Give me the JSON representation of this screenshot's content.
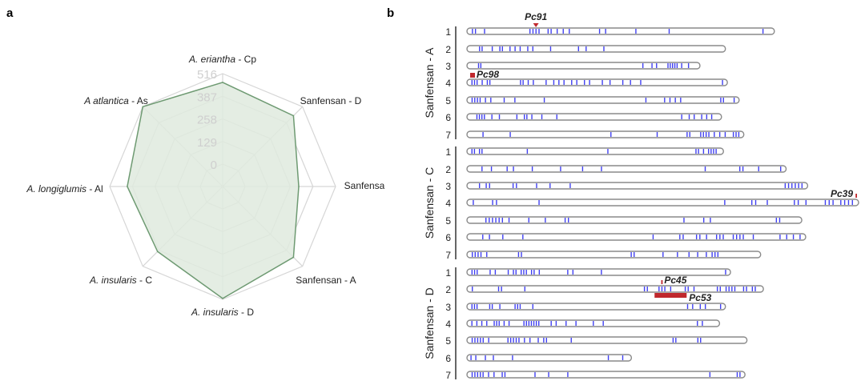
{
  "panels": {
    "a": "a",
    "b": "b"
  },
  "chart_data": [
    {
      "type": "radar",
      "axes": [
        "A. eriantha - Cp",
        "Sanfensan - D",
        "Sanfensan - C",
        "Sanfensan - A",
        "A. insularis - D",
        "A. insularis - C",
        "A. longiglumis - Al",
        "A atlantica - As"
      ],
      "axis_label_parts": [
        {
          "italic": "A. eriantha",
          "plain": " - Cp"
        },
        {
          "italic": "",
          "plain": "Sanfensan - D"
        },
        {
          "italic": "",
          "plain": "Sanfensan - C"
        },
        {
          "italic": "",
          "plain": "Sanfensan - A"
        },
        {
          "italic": "A. insularis",
          "plain": " - D"
        },
        {
          "italic": "A. insularis",
          "plain": " - C"
        },
        {
          "italic": "A. longiglumis",
          "plain": " - Al"
        },
        {
          "italic": "A atlantica",
          "plain": " - As"
        }
      ],
      "values": [
        466,
        443,
        306,
        443,
        511,
        397,
        416,
        516
      ],
      "ticks": [
        0,
        129,
        258,
        387,
        516
      ],
      "tick_labels": [
        "0",
        "129",
        "258",
        "387",
        "516"
      ],
      "range": [
        0,
        516
      ],
      "colors": {
        "fill": "#dfeade",
        "line": "#6e9a72",
        "grid": "#d6d6d6",
        "tick": "#cfcfcf"
      }
    },
    {
      "type": "chromosome-map",
      "colors": {
        "band": "#0000ee",
        "outline": "#8a8a8a",
        "marker": "#c0282d"
      },
      "genomes": [
        {
          "name": "Sanfensan - A",
          "chromosomes": [
            {
              "label": "1",
              "relative_length": 0.785,
              "bands": [
                0.01,
                0.02,
                0.05,
                0.2,
                0.21,
                0.22,
                0.23,
                0.26,
                0.27,
                0.29,
                0.31,
                0.33,
                0.43,
                0.45,
                0.55,
                0.66,
                0.97
              ]
            },
            {
              "label": "2",
              "relative_length": 0.66,
              "bands": [
                0.04,
                0.05,
                0.09,
                0.12,
                0.13,
                0.16,
                0.18,
                0.2,
                0.23,
                0.25,
                0.32,
                0.43,
                0.46,
                0.53
              ]
            },
            {
              "label": "3",
              "relative_length": 0.595,
              "bands": [
                0.04,
                0.05,
                0.76,
                0.8,
                0.82,
                0.87,
                0.88,
                0.89,
                0.9,
                0.91,
                0.93,
                0.96
              ]
            },
            {
              "label": "4",
              "relative_length": 0.665,
              "bands": [
                0.01,
                0.02,
                0.03,
                0.05,
                0.07,
                0.08,
                0.2,
                0.21,
                0.23,
                0.25,
                0.3,
                0.33,
                0.35,
                0.37,
                0.4,
                0.42,
                0.45,
                0.47,
                0.52,
                0.55,
                0.6,
                0.63,
                0.67,
                0.99
              ]
            },
            {
              "label": "5",
              "relative_length": 0.695,
              "bands": [
                0.01,
                0.02,
                0.03,
                0.04,
                0.06,
                0.08,
                0.13,
                0.17,
                0.28,
                0.66,
                0.73,
                0.75,
                0.77,
                0.79,
                0.94,
                0.95,
                0.99
              ]
            },
            {
              "label": "6",
              "relative_length": 0.65,
              "bands": [
                0.03,
                0.04,
                0.05,
                0.06,
                0.09,
                0.12,
                0.19,
                0.22,
                0.23,
                0.25,
                0.29,
                0.35,
                0.85,
                0.88,
                0.9,
                0.93,
                0.95,
                0.97
              ]
            },
            {
              "label": "7",
              "relative_length": 0.707,
              "bands": [
                0.05,
                0.15,
                0.52,
                0.69,
                0.8,
                0.81,
                0.85,
                0.86,
                0.87,
                0.88,
                0.9,
                0.92,
                0.94,
                0.97,
                0.98,
                0.99
              ]
            }
          ]
        },
        {
          "name": "Sanfensan - C",
          "chromosomes": [
            {
              "label": "1",
              "relative_length": 0.655,
              "bands": [
                0.01,
                0.02,
                0.04,
                0.05,
                0.23,
                0.55,
                0.9,
                0.91,
                0.93,
                0.95,
                0.96,
                0.97,
                0.98
              ]
            },
            {
              "label": "2",
              "relative_length": 0.815,
              "bands": [
                0.04,
                0.07,
                0.12,
                0.14,
                0.2,
                0.29,
                0.36,
                0.42,
                0.75,
                0.86,
                0.87,
                0.92,
                0.99
              ]
            },
            {
              "label": "3",
              "relative_length": 0.87,
              "bands": [
                0.03,
                0.05,
                0.06,
                0.13,
                0.14,
                0.2,
                0.24,
                0.3,
                0.94,
                0.95,
                0.96,
                0.97,
                0.98,
                0.99
              ]
            },
            {
              "label": "4",
              "relative_length": 1.0,
              "bands": [
                0.01,
                0.06,
                0.07,
                0.18,
                0.66,
                0.73,
                0.74,
                0.77,
                0.84,
                0.85,
                0.87,
                0.92,
                0.93,
                0.94,
                0.96,
                0.97,
                0.98,
                0.99
              ]
            },
            {
              "label": "5",
              "relative_length": 0.855,
              "bands": [
                0.05,
                0.06,
                0.07,
                0.08,
                0.09,
                0.1,
                0.12,
                0.18,
                0.23,
                0.29,
                0.3,
                0.65,
                0.71,
                0.73,
                0.93,
                0.94
              ]
            },
            {
              "label": "6",
              "relative_length": 0.865,
              "bands": [
                0.04,
                0.06,
                0.1,
                0.16,
                0.55,
                0.63,
                0.64,
                0.68,
                0.69,
                0.71,
                0.74,
                0.75,
                0.76,
                0.79,
                0.8,
                0.81,
                0.82,
                0.85,
                0.93,
                0.95,
                0.97,
                0.99
              ]
            },
            {
              "label": "7",
              "relative_length": 0.75,
              "bands": [
                0.01,
                0.02,
                0.03,
                0.04,
                0.06,
                0.17,
                0.18,
                0.56,
                0.57,
                0.67,
                0.72,
                0.76,
                0.79,
                0.82,
                0.84,
                0.85,
                0.86
              ]
            }
          ]
        },
        {
          "name": "Sanfensan - D",
          "chromosomes": [
            {
              "label": "1",
              "relative_length": 0.673,
              "bands": [
                0.01,
                0.02,
                0.03,
                0.08,
                0.1,
                0.15,
                0.17,
                0.18,
                0.2,
                0.21,
                0.22,
                0.24,
                0.25,
                0.27,
                0.38,
                0.4,
                0.51,
                0.99
              ]
            },
            {
              "label": "2",
              "relative_length": 0.757,
              "bands": [
                0.01,
                0.1,
                0.11,
                0.19,
                0.6,
                0.61,
                0.65,
                0.66,
                0.67,
                0.69,
                0.74,
                0.75,
                0.77,
                0.85,
                0.86,
                0.88,
                0.89,
                0.9,
                0.91,
                0.94,
                0.95,
                0.97,
                0.98
              ]
            },
            {
              "label": "3",
              "relative_length": 0.66,
              "bands": [
                0.01,
                0.02,
                0.03,
                0.08,
                0.09,
                0.12,
                0.18,
                0.19,
                0.2,
                0.25,
                0.86,
                0.88,
                0.91,
                0.93,
                0.99
              ]
            },
            {
              "label": "4",
              "relative_length": 0.645,
              "bands": [
                0.01,
                0.03,
                0.05,
                0.07,
                0.1,
                0.11,
                0.12,
                0.14,
                0.16,
                0.22,
                0.23,
                0.24,
                0.25,
                0.26,
                0.27,
                0.28,
                0.33,
                0.35,
                0.39,
                0.43,
                0.5,
                0.54,
                0.92,
                0.94
              ]
            },
            {
              "label": "5",
              "relative_length": 0.715,
              "bands": [
                0.01,
                0.02,
                0.03,
                0.04,
                0.05,
                0.07,
                0.14,
                0.15,
                0.16,
                0.17,
                0.18,
                0.2,
                0.22,
                0.25,
                0.27,
                0.28,
                0.37,
                0.74,
                0.75,
                0.83,
                0.84
              ]
            },
            {
              "label": "6",
              "relative_length": 0.42,
              "bands": [
                0.01,
                0.04,
                0.1,
                0.15,
                0.27,
                0.87,
                0.96
              ]
            },
            {
              "label": "7",
              "relative_length": 0.71,
              "bands": [
                0.01,
                0.02,
                0.03,
                0.04,
                0.05,
                0.07,
                0.09,
                0.12,
                0.13,
                0.24,
                0.29,
                0.36,
                0.88,
                0.98,
                0.99
              ]
            }
          ]
        }
      ],
      "markers": [
        {
          "label": "Pc91",
          "genome": 0,
          "chromosome": 0,
          "position": 0.22,
          "style": "triangle"
        },
        {
          "label": "Pc98",
          "genome": 0,
          "chromosome": 3,
          "position": 0.0,
          "style": "square"
        },
        {
          "label": "Pc39",
          "genome": 1,
          "chromosome": 3,
          "position": 1.0,
          "style": "tick"
        },
        {
          "label": "Pc45",
          "genome": 2,
          "chromosome": 1,
          "position": 0.66,
          "style": "tick"
        },
        {
          "label": "Pc53",
          "genome": 2,
          "chromosome": 1,
          "position": [
            0.635,
            0.745
          ],
          "style": "bar"
        }
      ]
    }
  ]
}
